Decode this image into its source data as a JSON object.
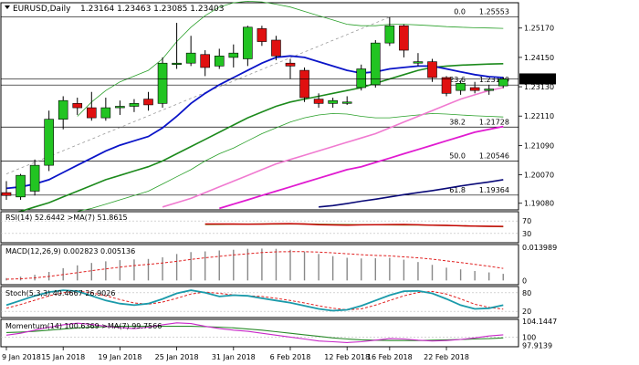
{
  "chart_data": [
    {
      "type": "candlestick",
      "title": "EURUSD,Daily",
      "ohlc_header": "1.23164 1.23463 1.23085 1.23403",
      "ylim": [
        1.1885,
        1.2605
      ],
      "y_ticks": [
        "1.25170",
        "1.24150",
        "1.23130",
        "1.22110",
        "1.21090",
        "1.20070",
        "1.19080"
      ],
      "price_tag": "1.23403",
      "x_ticks": [
        "9 Jan 2018",
        "15 Jan 2018",
        "19 Jan 2018",
        "25 Jan 2018",
        "31 Jan 2018",
        "6 Feb 2018",
        "12 Feb 2018",
        "16 Feb 2018",
        "22 Feb 2018"
      ],
      "fib_levels": [
        {
          "label": "0.0",
          "value": 1.25553,
          "text": "1.25553"
        },
        {
          "label": "23.6",
          "value": 1.2319,
          "text": "1.23190"
        },
        {
          "label": "38.2",
          "value": 1.21728,
          "text": "1.21728"
        },
        {
          "label": "50.0",
          "value": 1.20546,
          "text": "1.20546"
        },
        {
          "label": "61.8",
          "value": 1.19364,
          "text": "1.19364"
        }
      ],
      "colors": {
        "bull": "#22c422",
        "bear": "#e01010",
        "wick": "#000000",
        "ma_fast": "#0a14c8",
        "ma_mid": "#1c8a1c",
        "ma_pink": "#f07ad0",
        "ma_slow_pink": "#e01ad0",
        "ma_navy": "#0a0a78",
        "bollinger": "#2aa02a",
        "trend": "#999999"
      },
      "candles": [
        {
          "o": 1.1945,
          "h": 1.1985,
          "l": 1.192,
          "c": 1.1935
        },
        {
          "o": 1.193,
          "h": 1.201,
          "l": 1.192,
          "c": 1.2005
        },
        {
          "o": 1.195,
          "h": 1.206,
          "l": 1.1935,
          "c": 1.204
        },
        {
          "o": 1.204,
          "h": 1.223,
          "l": 1.202,
          "c": 1.22
        },
        {
          "o": 1.22,
          "h": 1.228,
          "l": 1.2165,
          "c": 1.2265
        },
        {
          "o": 1.2255,
          "h": 1.2275,
          "l": 1.2215,
          "c": 1.224
        },
        {
          "o": 1.224,
          "h": 1.2295,
          "l": 1.2195,
          "c": 1.2205
        },
        {
          "o": 1.2205,
          "h": 1.2275,
          "l": 1.2195,
          "c": 1.224
        },
        {
          "o": 1.224,
          "h": 1.2265,
          "l": 1.2215,
          "c": 1.2245
        },
        {
          "o": 1.2245,
          "h": 1.227,
          "l": 1.2225,
          "c": 1.2255
        },
        {
          "o": 1.227,
          "h": 1.2295,
          "l": 1.223,
          "c": 1.225
        },
        {
          "o": 1.2255,
          "h": 1.2415,
          "l": 1.224,
          "c": 1.2395
        },
        {
          "o": 1.2395,
          "h": 1.2535,
          "l": 1.2375,
          "c": 1.2395
        },
        {
          "o": 1.2395,
          "h": 1.249,
          "l": 1.2385,
          "c": 1.243
        },
        {
          "o": 1.2425,
          "h": 1.244,
          "l": 1.235,
          "c": 1.238
        },
        {
          "o": 1.2385,
          "h": 1.2445,
          "l": 1.2375,
          "c": 1.242
        },
        {
          "o": 1.2415,
          "h": 1.246,
          "l": 1.238,
          "c": 1.243
        },
        {
          "o": 1.241,
          "h": 1.2525,
          "l": 1.2385,
          "c": 1.252
        },
        {
          "o": 1.2515,
          "h": 1.2525,
          "l": 1.2455,
          "c": 1.247
        },
        {
          "o": 1.2475,
          "h": 1.249,
          "l": 1.2405,
          "c": 1.242
        },
        {
          "o": 1.2395,
          "h": 1.241,
          "l": 1.234,
          "c": 1.2385
        },
        {
          "o": 1.237,
          "h": 1.238,
          "l": 1.226,
          "c": 1.2275
        },
        {
          "o": 1.227,
          "h": 1.229,
          "l": 1.224,
          "c": 1.2255
        },
        {
          "o": 1.2255,
          "h": 1.2275,
          "l": 1.224,
          "c": 1.2265
        },
        {
          "o": 1.226,
          "h": 1.228,
          "l": 1.225,
          "c": 1.226
        },
        {
          "o": 1.231,
          "h": 1.239,
          "l": 1.23,
          "c": 1.2375
        },
        {
          "o": 1.232,
          "h": 1.2475,
          "l": 1.231,
          "c": 1.2465
        },
        {
          "o": 1.2465,
          "h": 1.2555,
          "l": 1.2455,
          "c": 1.2525
        },
        {
          "o": 1.2525,
          "h": 1.253,
          "l": 1.2415,
          "c": 1.244
        },
        {
          "o": 1.2395,
          "h": 1.243,
          "l": 1.2385,
          "c": 1.24
        },
        {
          "o": 1.24,
          "h": 1.241,
          "l": 1.233,
          "c": 1.2345
        },
        {
          "o": 1.2345,
          "h": 1.235,
          "l": 1.228,
          "c": 1.229
        },
        {
          "o": 1.23,
          "h": 1.2335,
          "l": 1.2285,
          "c": 1.2325
        },
        {
          "o": 1.231,
          "h": 1.233,
          "l": 1.229,
          "c": 1.23
        },
        {
          "o": 1.23,
          "h": 1.232,
          "l": 1.2285,
          "c": 1.2305
        },
        {
          "o": 1.2316,
          "h": 1.2346,
          "l": 1.2308,
          "c": 1.234
        }
      ],
      "ma_fast": [
        1.196,
        1.1965,
        1.1975,
        1.199,
        1.2015,
        1.204,
        1.2065,
        1.209,
        1.211,
        1.2125,
        1.214,
        1.217,
        1.221,
        1.2255,
        1.229,
        1.232,
        1.2345,
        1.237,
        1.2395,
        1.2415,
        1.242,
        1.2415,
        1.24,
        1.2385,
        1.237,
        1.236,
        1.2365,
        1.2375,
        1.238,
        1.2385,
        1.2385,
        1.2375,
        1.2365,
        1.2355,
        1.2348,
        1.2345
      ],
      "ma_mid": [
        1.187,
        1.188,
        1.1895,
        1.191,
        1.193,
        1.195,
        1.197,
        1.199,
        1.2005,
        1.202,
        1.2035,
        1.2055,
        1.208,
        1.2105,
        1.213,
        1.2155,
        1.218,
        1.2205,
        1.2225,
        1.2245,
        1.226,
        1.227,
        1.228,
        1.229,
        1.23,
        1.231,
        1.2325,
        1.234,
        1.2355,
        1.237,
        1.238,
        1.2385,
        1.2388,
        1.239,
        1.2392,
        1.2393
      ],
      "ma_pink": [
        null,
        null,
        null,
        null,
        null,
        null,
        null,
        null,
        null,
        null,
        null,
        1.1895,
        1.191,
        1.1925,
        1.1945,
        1.1965,
        1.1985,
        1.2005,
        1.2025,
        1.2045,
        1.206,
        1.2075,
        1.209,
        1.2105,
        1.212,
        1.2135,
        1.215,
        1.217,
        1.219,
        1.221,
        1.223,
        1.225,
        1.227,
        1.2285,
        1.23,
        1.231
      ],
      "ma_slow_pink": [
        null,
        null,
        null,
        null,
        null,
        null,
        null,
        null,
        null,
        null,
        null,
        null,
        null,
        null,
        null,
        1.189,
        1.1905,
        1.192,
        1.1935,
        1.195,
        1.1965,
        1.198,
        1.1995,
        1.201,
        1.2025,
        1.2035,
        1.205,
        1.2065,
        1.208,
        1.2095,
        1.211,
        1.2125,
        1.214,
        1.2155,
        1.2165,
        1.2175
      ],
      "ma_navy": [
        null,
        null,
        null,
        null,
        null,
        null,
        null,
        null,
        null,
        null,
        null,
        null,
        null,
        null,
        null,
        null,
        null,
        null,
        null,
        null,
        null,
        null,
        1.1895,
        1.19,
        1.1907,
        1.1915,
        1.1922,
        1.193,
        1.1938,
        1.1945,
        1.1952,
        1.196,
        1.1968,
        1.1975,
        1.1982,
        1.199
      ],
      "boll_upper": [
        null,
        null,
        null,
        null,
        null,
        1.221,
        1.226,
        1.23,
        1.233,
        1.235,
        1.237,
        1.241,
        1.247,
        1.252,
        1.256,
        1.259,
        1.2605,
        1.261,
        1.2608,
        1.26,
        1.259,
        1.2575,
        1.256,
        1.2545,
        1.253,
        1.2525,
        1.2525,
        1.253,
        1.253,
        1.2528,
        1.2525,
        1.2522,
        1.252,
        1.2518,
        1.2517,
        1.2516
      ],
      "boll_lower": [
        null,
        null,
        null,
        null,
        null,
        1.188,
        1.189,
        1.1905,
        1.192,
        1.1935,
        1.195,
        1.1975,
        1.2,
        1.2025,
        1.2055,
        1.208,
        1.21,
        1.2125,
        1.215,
        1.217,
        1.219,
        1.2205,
        1.2215,
        1.222,
        1.2218,
        1.221,
        1.2205,
        1.2205,
        1.221,
        1.2215,
        1.222,
        1.2218,
        1.2215,
        1.2212,
        1.221,
        1.2208
      ],
      "trendline": {
        "from_candle": 0,
        "from_value": 1.201,
        "to_candle": 27,
        "to_value": 1.2555
      }
    },
    {
      "type": "line",
      "title": "RSI(14) 52.6442  >MA(7) 51.8615",
      "ylim": [
        0,
        100
      ],
      "y_ticks": [
        "70",
        "30"
      ],
      "levels": [
        70,
        30
      ],
      "series": [
        {
          "name": "RSI(14)",
          "color": "#c80000",
          "values": [
            null,
            null,
            null,
            null,
            null,
            null,
            null,
            null,
            null,
            null,
            null,
            null,
            null,
            null,
            60.5,
            60.7,
            60.2,
            59.8,
            60.0,
            61.2,
            61.5,
            60.2,
            58.0,
            57.0,
            56.5,
            57.5,
            57.8,
            58.5,
            59.2,
            58.0,
            56.5,
            55.8,
            54.8,
            53.5,
            53.0,
            52.6
          ]
        },
        {
          "name": "MA(7)",
          "color": "#8a8a3a",
          "values": [
            null,
            null,
            null,
            null,
            null,
            null,
            null,
            null,
            null,
            null,
            null,
            null,
            null,
            null,
            58.8,
            59.2,
            59.6,
            60.0,
            60.2,
            60.4,
            60.5,
            60.3,
            59.8,
            59.2,
            58.5,
            58.0,
            57.8,
            57.6,
            57.4,
            57.0,
            56.4,
            55.6,
            54.7,
            53.6,
            52.6,
            51.9
          ]
        }
      ]
    },
    {
      "type": "bar",
      "title": "MACD(12,26,9) 0.002823 0.005136",
      "ylim": [
        -0.0018,
        0.0152
      ],
      "y_ticks": [
        "0.013989",
        "0"
      ],
      "colors": {
        "hist": "#888888",
        "signal": "#e02020"
      },
      "histogram": [
        0.001,
        0.0016,
        0.0024,
        0.0036,
        0.0052,
        0.0064,
        0.0074,
        0.0081,
        0.0086,
        0.0089,
        0.0091,
        0.0098,
        0.0112,
        0.012,
        0.0123,
        0.0127,
        0.013,
        0.0134,
        0.0135,
        0.0134,
        0.013,
        0.0122,
        0.0112,
        0.0103,
        0.0096,
        0.0093,
        0.0094,
        0.0096,
        0.0088,
        0.0078,
        0.0066,
        0.0054,
        0.0047,
        0.004,
        0.0034,
        0.0028
      ],
      "signal": [
        0.0005,
        0.0007,
        0.0011,
        0.0017,
        0.0025,
        0.0033,
        0.0041,
        0.0049,
        0.0056,
        0.0063,
        0.0068,
        0.0074,
        0.0081,
        0.0089,
        0.0096,
        0.0102,
        0.0108,
        0.0113,
        0.0118,
        0.0121,
        0.0122,
        0.0122,
        0.012,
        0.0117,
        0.0113,
        0.0109,
        0.0106,
        0.0104,
        0.01,
        0.0096,
        0.009,
        0.0083,
        0.0076,
        0.0068,
        0.006,
        0.0051
      ]
    },
    {
      "type": "line",
      "title": "Stoch(5,3,3) 40.4667 26.9026",
      "ylim": [
        0,
        100
      ],
      "y_ticks": [
        "80",
        "20"
      ],
      "levels": [
        80,
        20
      ],
      "series": [
        {
          "name": "%K",
          "color": "#1a9aaa",
          "values": [
            40,
            55,
            70,
            82,
            88,
            85,
            70,
            55,
            45,
            40,
            45,
            60,
            78,
            88,
            80,
            68,
            72,
            70,
            62,
            55,
            48,
            38,
            28,
            22,
            25,
            38,
            55,
            72,
            85,
            86,
            78,
            60,
            40,
            28,
            30,
            40
          ]
        },
        {
          "name": "%D",
          "color": "#e02020",
          "values": [
            30,
            42,
            56,
            70,
            80,
            85,
            80,
            70,
            58,
            47,
            43,
            50,
            62,
            76,
            82,
            78,
            73,
            70,
            68,
            62,
            55,
            47,
            38,
            30,
            25,
            28,
            40,
            55,
            70,
            81,
            84,
            76,
            60,
            43,
            33,
            27
          ]
        }
      ]
    },
    {
      "type": "line",
      "title": "Momentum(14) 100.6369  >MA(7) 99.7566",
      "ylim": [
        97.5,
        104.6
      ],
      "y_ticks": [
        "104.1447",
        "100",
        "97.9139"
      ],
      "level": 100,
      "series": [
        {
          "name": "Momentum(14)",
          "color": "#c828c8",
          "values": [
            100.5,
            101.0,
            101.8,
            102.6,
            103.2,
            103.6,
            103.3,
            102.8,
            102.5,
            102.2,
            102.6,
            103.2,
            103.7,
            103.5,
            102.8,
            102.2,
            101.8,
            101.5,
            101.0,
            100.5,
            100.0,
            99.5,
            99.0,
            98.8,
            98.6,
            98.8,
            99.2,
            99.6,
            99.5,
            99.2,
            99.0,
            99.1,
            99.4,
            99.8,
            100.3,
            100.6
          ]
        },
        {
          "name": "MA(7)",
          "color": "#2a8a2a",
          "values": [
            101.2,
            101.3,
            101.5,
            101.8,
            102.1,
            102.4,
            102.6,
            102.7,
            102.8,
            102.8,
            102.8,
            102.8,
            102.8,
            102.8,
            102.7,
            102.6,
            102.4,
            102.1,
            101.8,
            101.4,
            101.0,
            100.6,
            100.2,
            99.8,
            99.5,
            99.3,
            99.2,
            99.1,
            99.1,
            99.1,
            99.2,
            99.3,
            99.4,
            99.5,
            99.6,
            99.8
          ]
        }
      ]
    }
  ]
}
